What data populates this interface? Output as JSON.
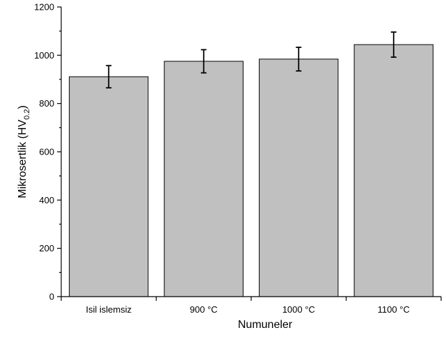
{
  "chart_data": {
    "type": "bar",
    "categories": [
      "Isil islemsiz",
      "900 °C",
      "1000 °C",
      "1100 °C"
    ],
    "values": [
      911,
      975,
      984,
      1044
    ],
    "errors": [
      46,
      48,
      49,
      52
    ],
    "xlabel": "Numuneler",
    "ylabel": {
      "prefix": "Mikrosertlik (HV",
      "subscript": "0.2",
      "suffix": ")"
    },
    "ylim": [
      0,
      1200
    ],
    "yticks": [
      0,
      200,
      400,
      600,
      800,
      1000,
      1200
    ],
    "grid": false,
    "colors": {
      "bar_fill": "#c0c0c0",
      "bar_stroke": "#000000"
    }
  }
}
